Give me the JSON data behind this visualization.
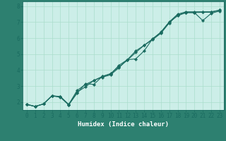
{
  "title": "",
  "xlabel": "Humidex (Indice chaleur)",
  "ylabel": "",
  "plot_bg_color": "#cceee8",
  "fig_bg_color": "#2d8070",
  "line_color": "#1a6b60",
  "grid_color": "#aaddcc",
  "xlim": [
    -0.5,
    23.5
  ],
  "ylim": [
    1.5,
    8.3
  ],
  "xticks": [
    0,
    1,
    2,
    3,
    4,
    5,
    6,
    7,
    8,
    9,
    10,
    11,
    12,
    13,
    14,
    15,
    16,
    17,
    18,
    19,
    20,
    21,
    22,
    23
  ],
  "yticks": [
    2,
    3,
    4,
    5,
    6,
    7,
    8
  ],
  "line1_x": [
    0,
    1,
    2,
    3,
    4,
    5,
    6,
    7,
    8,
    9,
    10,
    11,
    12,
    13,
    14,
    15,
    16,
    17,
    18,
    19,
    20,
    21,
    22,
    23
  ],
  "line1_y": [
    1.85,
    1.72,
    1.88,
    2.38,
    2.35,
    1.85,
    2.72,
    3.1,
    3.35,
    3.55,
    3.7,
    4.15,
    4.65,
    5.2,
    5.55,
    5.95,
    6.35,
    7.0,
    7.4,
    7.6,
    7.6,
    7.1,
    7.55,
    7.7
  ],
  "line2_x": [
    0,
    1,
    2,
    3,
    4,
    5,
    6,
    7,
    8,
    9,
    10,
    11,
    12,
    13,
    14,
    15,
    16,
    17,
    18,
    19,
    20,
    21,
    22,
    23
  ],
  "line2_y": [
    1.85,
    1.72,
    1.88,
    2.38,
    2.3,
    1.82,
    2.55,
    3.15,
    3.1,
    3.6,
    3.75,
    4.3,
    4.65,
    4.7,
    5.2,
    5.95,
    6.38,
    7.02,
    7.5,
    7.65,
    7.65,
    7.65,
    7.65,
    7.75
  ],
  "line3_x": [
    0,
    1,
    2,
    3,
    4,
    5,
    6,
    7,
    8,
    9,
    10,
    11,
    12,
    13,
    14,
    15,
    16,
    17,
    18,
    19,
    20,
    21,
    22,
    23
  ],
  "line3_y": [
    1.85,
    1.72,
    1.88,
    2.4,
    2.32,
    1.82,
    2.62,
    2.95,
    3.35,
    3.6,
    3.78,
    4.2,
    4.62,
    5.1,
    5.55,
    5.9,
    6.3,
    6.95,
    7.45,
    7.6,
    7.6,
    7.62,
    7.62,
    7.75
  ]
}
